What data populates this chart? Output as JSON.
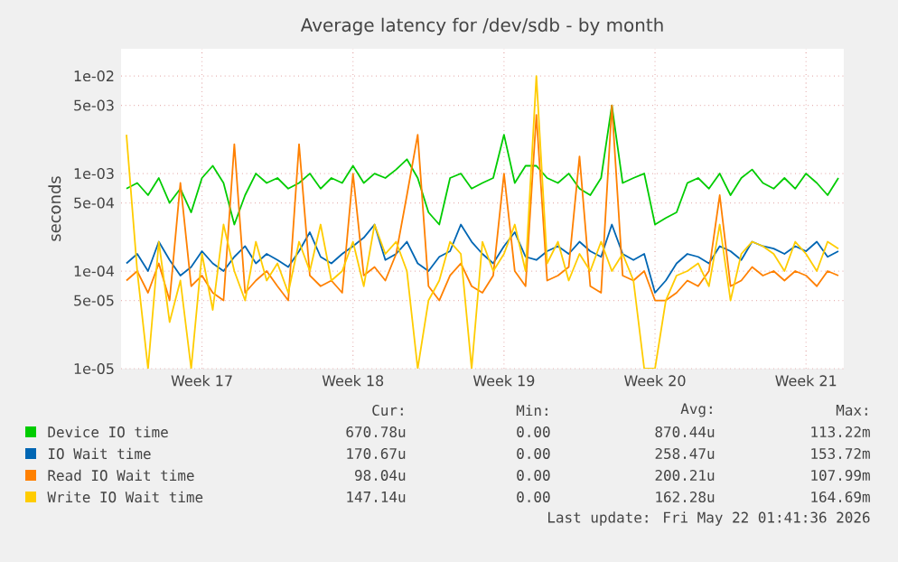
{
  "chart_data": {
    "type": "line",
    "title": "Average latency for /dev/sdb - by month",
    "ylabel": "seconds",
    "log": "y",
    "grid": true,
    "legend": "bottom",
    "marker": "none",
    "line_style": "solid",
    "categories": [
      null,
      null,
      null,
      null,
      null,
      null,
      null,
      "Week 17",
      null,
      null,
      null,
      null,
      null,
      null,
      null,
      null,
      null,
      null,
      null,
      null,
      null,
      "Week 18",
      null,
      null,
      null,
      null,
      null,
      null,
      null,
      null,
      null,
      null,
      null,
      null,
      null,
      "Week 19",
      null,
      null,
      null,
      null,
      null,
      null,
      null,
      null,
      null,
      null,
      null,
      null,
      null,
      "Week 20",
      null,
      null,
      null,
      null,
      null,
      null,
      null,
      null,
      null,
      null,
      null,
      null,
      null,
      "Week 21",
      null,
      null,
      null
    ],
    "ylim": [
      1e-05,
      0.019
    ],
    "yticks": [
      {
        "value": 1e-05,
        "label": "1e-05"
      },
      {
        "value": 5e-05,
        "label": "5e-05"
      },
      {
        "value": 0.0001,
        "label": "1e-04"
      },
      {
        "value": 0.0005,
        "label": "5e-04"
      },
      {
        "value": 0.001,
        "label": "1e-03"
      },
      {
        "value": 0.005,
        "label": "5e-03"
      },
      {
        "value": 0.01,
        "label": "1e-02"
      }
    ],
    "series": [
      {
        "name": "Device IO time",
        "color": "#00cc00",
        "values": [
          0.0007,
          0.0008,
          0.0006,
          0.0009,
          0.0005,
          0.0007,
          0.0004,
          0.0009,
          0.0012,
          0.0008,
          0.0003,
          0.0006,
          0.001,
          0.0008,
          0.0009,
          0.0007,
          0.0008,
          0.001,
          0.0007,
          0.0009,
          0.0008,
          0.0012,
          0.0008,
          0.001,
          0.0009,
          0.0011,
          0.0014,
          0.0009,
          0.0004,
          0.0003,
          0.0009,
          0.001,
          0.0007,
          0.0008,
          0.0009,
          0.0025,
          0.0008,
          0.0012,
          0.0012,
          0.0009,
          0.0008,
          0.001,
          0.0007,
          0.0006,
          0.0009,
          0.005,
          0.0008,
          0.0009,
          0.001,
          0.0003,
          0.00035,
          0.0004,
          0.0008,
          0.0009,
          0.0007,
          0.001,
          0.0006,
          0.0009,
          0.0011,
          0.0008,
          0.0007,
          0.0009,
          0.0007,
          0.001,
          0.0008,
          0.0006,
          0.0009
        ]
      },
      {
        "name": "IO Wait time",
        "color": "#0066b3",
        "values": [
          0.00012,
          0.00015,
          0.0001,
          0.0002,
          0.00013,
          9e-05,
          0.00011,
          0.00016,
          0.00012,
          0.0001,
          0.00014,
          0.00018,
          0.00012,
          0.00015,
          0.00013,
          0.00011,
          0.00016,
          0.00025,
          0.00014,
          0.00012,
          0.00015,
          0.00018,
          0.00022,
          0.0003,
          0.00013,
          0.00015,
          0.0002,
          0.00012,
          0.0001,
          0.00014,
          0.00016,
          0.0003,
          0.0002,
          0.00015,
          0.00012,
          0.00018,
          0.00025,
          0.00014,
          0.00013,
          0.00016,
          0.00018,
          0.00015,
          0.0002,
          0.00016,
          0.00014,
          0.0003,
          0.00015,
          0.00013,
          0.00015,
          6e-05,
          8e-05,
          0.00012,
          0.00015,
          0.00014,
          0.00012,
          0.00018,
          0.00016,
          0.00013,
          0.0002,
          0.00018,
          0.00017,
          0.00015,
          0.00018,
          0.00016,
          0.0002,
          0.00014,
          0.00016
        ]
      },
      {
        "name": "Read IO Wait time",
        "color": "#ff8000",
        "values": [
          8e-05,
          0.0001,
          6e-05,
          0.00012,
          5e-05,
          0.0008,
          7e-05,
          9e-05,
          6e-05,
          5e-05,
          0.002,
          6e-05,
          8e-05,
          0.0001,
          7e-05,
          5e-05,
          0.002,
          9e-05,
          7e-05,
          8e-05,
          6e-05,
          0.001,
          9e-05,
          0.00011,
          8e-05,
          0.00015,
          0.0006,
          0.0025,
          7e-05,
          5e-05,
          9e-05,
          0.00012,
          7e-05,
          6e-05,
          9e-05,
          0.001,
          0.0001,
          7e-05,
          0.004,
          8e-05,
          9e-05,
          0.00011,
          0.0015,
          7e-05,
          6e-05,
          0.005,
          9e-05,
          8e-05,
          0.0001,
          5e-05,
          5e-05,
          6e-05,
          8e-05,
          7e-05,
          0.0001,
          0.0006,
          7e-05,
          8e-05,
          0.00011,
          9e-05,
          0.0001,
          8e-05,
          0.0001,
          9e-05,
          7e-05,
          0.0001,
          9e-05
        ]
      },
      {
        "name": "Write IO Wait time",
        "color": "#ffcc00",
        "values": [
          0.0025,
          0.0001,
          1e-05,
          0.0002,
          3e-05,
          8e-05,
          1e-05,
          0.00015,
          4e-05,
          0.0003,
          0.0001,
          5e-05,
          0.0002,
          8e-05,
          0.00012,
          6e-05,
          0.0002,
          0.0001,
          0.0003,
          8e-05,
          0.0001,
          0.0002,
          7e-05,
          0.0003,
          0.00015,
          0.0002,
          0.0001,
          1e-05,
          5e-05,
          8e-05,
          0.0002,
          0.00015,
          1e-05,
          0.0002,
          0.0001,
          0.00015,
          0.0003,
          0.0001,
          0.01,
          0.00012,
          0.0002,
          8e-05,
          0.00015,
          0.0001,
          0.0002,
          0.0001,
          0.00015,
          8e-05,
          1e-05,
          1e-05,
          5e-05,
          9e-05,
          0.0001,
          0.00012,
          7e-05,
          0.0003,
          5e-05,
          0.00015,
          0.0002,
          0.00018,
          0.00015,
          0.0001,
          0.0002,
          0.00015,
          0.0001,
          0.0002,
          0.00017
        ]
      }
    ],
    "annotations": [
      "Cur:",
      "Min:",
      "Avg:",
      "Max:",
      "670.78u",
      "0.00",
      "870.44u",
      "113.22m",
      "170.67u",
      "0.00",
      "258.47u",
      "153.72m",
      "98.04u",
      "0.00",
      "200.21u",
      "107.99m",
      "147.14u",
      "0.00",
      "162.28u",
      "164.69m",
      "Last update: Fri May 22 01:41:36 2026"
    ]
  }
}
